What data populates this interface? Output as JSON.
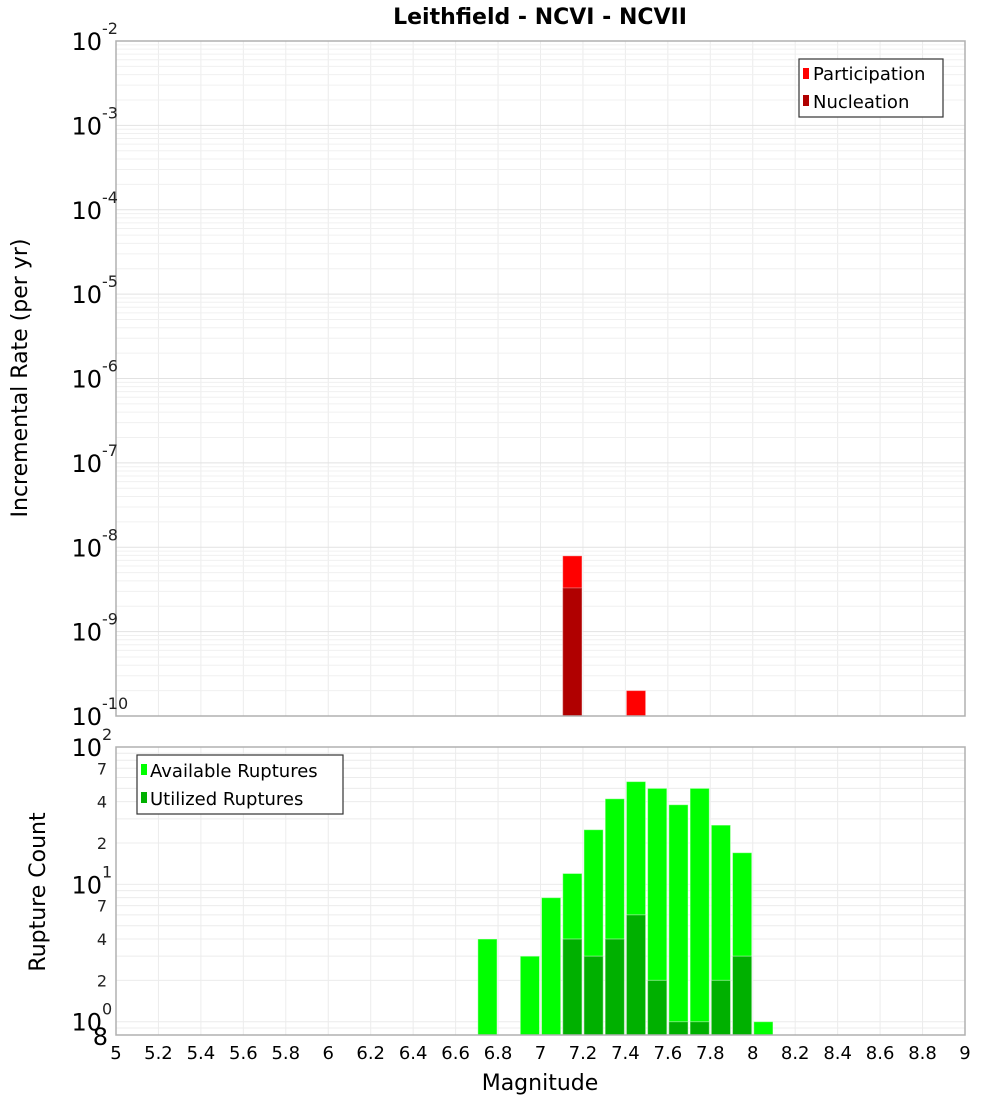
{
  "chart_data": [
    {
      "type": "bar",
      "title": "Leithfield - NCVI - NCVII",
      "xlabel": "Magnitude",
      "ylabel": "Incremental Rate (per yr)",
      "yscale": "log",
      "ylim": [
        1e-10,
        0.01
      ],
      "xlim": [
        5,
        9
      ],
      "y_ticks": [
        {
          "base": "10",
          "exp": "-2",
          "value": 0.01
        },
        {
          "base": "10",
          "exp": "-3",
          "value": 0.001
        },
        {
          "base": "10",
          "exp": "-4",
          "value": 0.0001
        },
        {
          "base": "10",
          "exp": "-5",
          "value": 1e-05
        },
        {
          "base": "10",
          "exp": "-6",
          "value": 1e-06
        },
        {
          "base": "10",
          "exp": "-7",
          "value": 1e-07
        },
        {
          "base": "10",
          "exp": "-8",
          "value": 1e-08
        },
        {
          "base": "10",
          "exp": "-9",
          "value": 1e-09
        },
        {
          "base": "10",
          "exp": "-10",
          "value": 1e-10
        }
      ],
      "bin_width": 0.1,
      "grid": true,
      "legend_position": "top-right",
      "series": [
        {
          "name": "Participation",
          "color": "#ff0000",
          "x": [
            7.15,
            7.45
          ],
          "values": [
            7.9e-09,
            2e-10
          ]
        },
        {
          "name": "Nucleation",
          "color": "#b00000",
          "x": [
            7.15
          ],
          "values": [
            3.3e-09
          ]
        }
      ]
    },
    {
      "type": "bar",
      "xlabel": "Magnitude",
      "ylabel": "Rupture Count",
      "yscale": "log",
      "ylim": [
        0.8,
        100
      ],
      "xlim": [
        5,
        9
      ],
      "y_ticks": [
        {
          "base": "10",
          "exp": "2",
          "value": 100
        },
        {
          "base": "10",
          "exp": "1",
          "value": 10
        },
        {
          "base": "10",
          "exp": "0",
          "value": 1
        }
      ],
      "y_minor_ticks": [
        {
          "label": "7",
          "value": 70
        },
        {
          "label": "4",
          "value": 40
        },
        {
          "label": "2",
          "value": 20
        },
        {
          "label": "7",
          "value": 7
        },
        {
          "label": "4",
          "value": 4
        },
        {
          "label": "2",
          "value": 2
        },
        {
          "label": "8",
          "value": 0.8
        }
      ],
      "x_ticks": [
        "5",
        "5.2",
        "5.4",
        "5.6",
        "5.8",
        "6",
        "6.2",
        "6.4",
        "6.6",
        "6.8",
        "7",
        "7.2",
        "7.4",
        "7.6",
        "7.8",
        "8",
        "8.2",
        "8.4",
        "8.6",
        "8.8",
        "9"
      ],
      "bin_width": 0.1,
      "grid": true,
      "legend_position": "top-left",
      "series": [
        {
          "name": "Available Ruptures",
          "color": "#00ff00",
          "x": [
            6.75,
            6.95,
            7.05,
            7.15,
            7.25,
            7.35,
            7.45,
            7.55,
            7.65,
            7.75,
            7.85,
            7.95,
            8.05
          ],
          "values": [
            4,
            3,
            8,
            12,
            25,
            42,
            56,
            50,
            38,
            50,
            27,
            17,
            1
          ]
        },
        {
          "name": "Utilized Ruptures",
          "color": "#00b000",
          "x": [
            7.15,
            7.25,
            7.35,
            7.45,
            7.55,
            7.65,
            7.75,
            7.85,
            7.95
          ],
          "values": [
            4,
            3,
            4,
            6,
            2,
            1,
            1,
            2,
            3
          ]
        }
      ]
    }
  ]
}
